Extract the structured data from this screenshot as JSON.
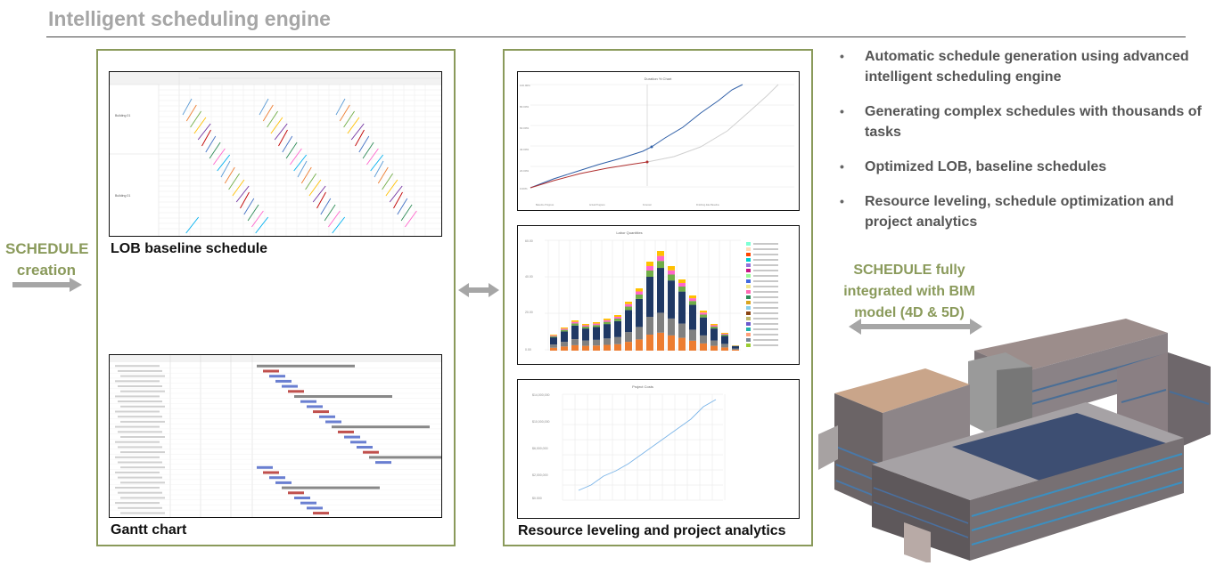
{
  "page": {
    "title": "Intelligent scheduling engine",
    "side_label_line1": "SCHEDULE",
    "side_label_line2": "creation"
  },
  "left_group": {
    "lob_caption": "LOB baseline schedule",
    "gantt_caption": "Gantt chart"
  },
  "middle_group": {
    "caption": "Resource leveling and project analytics",
    "duration_chart_title": "Duration % Chart",
    "labor_chart_title": "Labor Quantities",
    "cost_chart_title": "Project Costs"
  },
  "bullets": [
    "Automatic schedule generation using advanced intelligent scheduling engine",
    "Generating complex schedules with thousands of tasks",
    "Optimized LOB, baseline schedules",
    "Resource leveling, schedule optimization and project analytics"
  ],
  "bim": {
    "label_line1": "SCHEDULE fully",
    "label_line2": "integrated with BIM",
    "label_line3": "model (4D & 5D)"
  },
  "colors": {
    "accent": "#8a9a5b",
    "title_gray": "#a6a6a6",
    "arrow_gray": "#a6a6a6"
  }
}
